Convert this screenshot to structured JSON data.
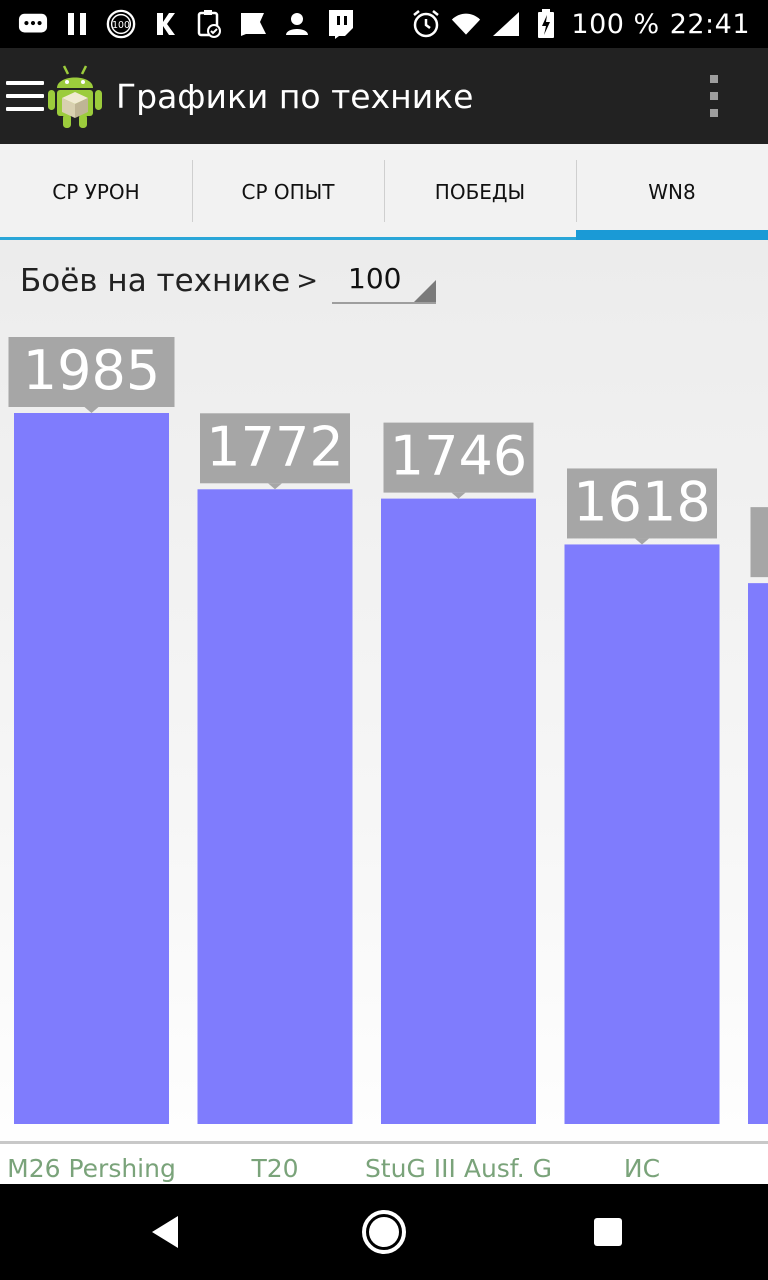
{
  "status_bar": {
    "battery_percent": "100 %",
    "time": "22:41",
    "icons": [
      "chat-icon",
      "pause-icon",
      "badge-100-icon",
      "k-icon",
      "clipboard-icon",
      "flag-icon",
      "person-icon",
      "twitch-icon",
      "alarm-icon",
      "wifi-icon",
      "signal-icon",
      "battery-charging-icon"
    ]
  },
  "app_bar": {
    "title": "Графики по технике"
  },
  "tabs": [
    {
      "label": "СР УРОН",
      "active": false
    },
    {
      "label": "СР ОПЫТ",
      "active": false
    },
    {
      "label": "ПОБЕДЫ",
      "active": false
    },
    {
      "label": "WN8",
      "active": true
    }
  ],
  "filter": {
    "label": "Боёв на технике",
    "arrow": ">",
    "value": "100"
  },
  "colors": {
    "bar": "#7f7cfd",
    "value_label_bg": "#a6a6a6",
    "category_text": "#7aa37a",
    "tab_accent": "#1a9ad6"
  },
  "chart_data": {
    "type": "bar",
    "categories": [
      "M26 Pershing",
      "T20",
      "StuG III Ausf. G",
      "ИС",
      ""
    ],
    "values": [
      1985,
      1772,
      1746,
      1618,
      1510
    ],
    "value_labels": [
      "1985",
      "1772",
      "1746",
      "1618",
      ""
    ],
    "ylim": [
      0,
      1985
    ],
    "grid": false
  }
}
